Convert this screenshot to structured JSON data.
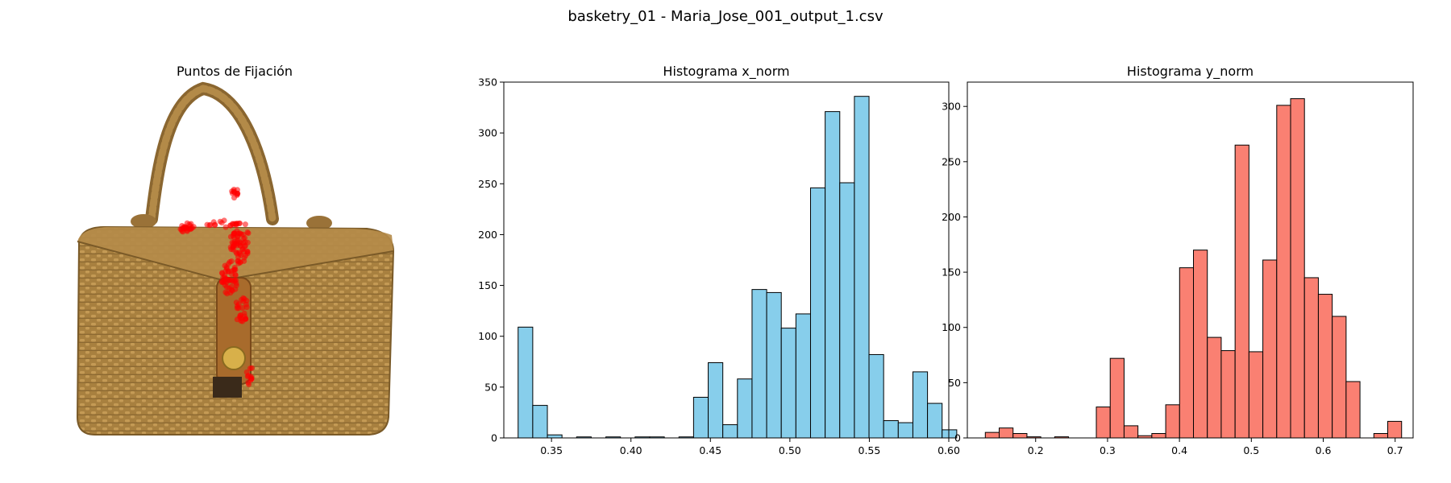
{
  "figure": {
    "suptitle": "basketry_01 - Maria_Jose_001_output_1.csv"
  },
  "image_panel": {
    "title": "Puntos de Fijación",
    "image_subject": "wicker-basket-handbag",
    "point_color": "#ff0000"
  },
  "chart_data": [
    {
      "type": "bar",
      "title": "Histograma x_norm",
      "xlabel": "",
      "ylabel": "",
      "xlim": [
        0.32,
        0.6
      ],
      "ylim": [
        0,
        350
      ],
      "xticks": [
        0.35,
        0.4,
        0.45,
        0.5,
        0.55,
        0.6
      ],
      "xtick_labels": [
        "0.35",
        "0.40",
        "0.45",
        "0.50",
        "0.55",
        "0.60"
      ],
      "yticks": [
        0,
        50,
        100,
        150,
        200,
        250,
        300,
        350
      ],
      "bar_color": "#87ceeb",
      "edge_color": "#000000",
      "bins": [
        {
          "x0": 0.329,
          "x1": 0.3382,
          "value": 109
        },
        {
          "x0": 0.3382,
          "x1": 0.3474,
          "value": 32
        },
        {
          "x0": 0.3474,
          "x1": 0.3566,
          "value": 3
        },
        {
          "x0": 0.3566,
          "x1": 0.3658,
          "value": 0
        },
        {
          "x0": 0.3658,
          "x1": 0.375,
          "value": 1
        },
        {
          "x0": 0.375,
          "x1": 0.3842,
          "value": 0
        },
        {
          "x0": 0.3842,
          "x1": 0.3934,
          "value": 1
        },
        {
          "x0": 0.3934,
          "x1": 0.4026,
          "value": 0
        },
        {
          "x0": 0.4026,
          "x1": 0.4118,
          "value": 1
        },
        {
          "x0": 0.4118,
          "x1": 0.421,
          "value": 1
        },
        {
          "x0": 0.421,
          "x1": 0.4302,
          "value": 0
        },
        {
          "x0": 0.4302,
          "x1": 0.4394,
          "value": 1
        },
        {
          "x0": 0.4394,
          "x1": 0.4486,
          "value": 40
        },
        {
          "x0": 0.4486,
          "x1": 0.4578,
          "value": 74
        },
        {
          "x0": 0.4578,
          "x1": 0.467,
          "value": 13
        },
        {
          "x0": 0.467,
          "x1": 0.4762,
          "value": 58
        },
        {
          "x0": 0.4762,
          "x1": 0.4854,
          "value": 146
        },
        {
          "x0": 0.4854,
          "x1": 0.4946,
          "value": 143
        },
        {
          "x0": 0.4946,
          "x1": 0.5038,
          "value": 108
        },
        {
          "x0": 0.5038,
          "x1": 0.513,
          "value": 122
        },
        {
          "x0": 0.513,
          "x1": 0.5222,
          "value": 246
        },
        {
          "x0": 0.5222,
          "x1": 0.5314,
          "value": 321
        },
        {
          "x0": 0.5314,
          "x1": 0.5406,
          "value": 251
        },
        {
          "x0": 0.5406,
          "x1": 0.5498,
          "value": 336
        },
        {
          "x0": 0.5498,
          "x1": 0.559,
          "value": 82
        },
        {
          "x0": 0.559,
          "x1": 0.5682,
          "value": 17
        },
        {
          "x0": 0.5682,
          "x1": 0.5774,
          "value": 15
        },
        {
          "x0": 0.5774,
          "x1": 0.5866,
          "value": 65
        },
        {
          "x0": 0.5866,
          "x1": 0.5958,
          "value": 34
        },
        {
          "x0": 0.5958,
          "x1": 0.605,
          "value": 8
        }
      ]
    },
    {
      "type": "bar",
      "title": "Histograma y_norm",
      "xlabel": "",
      "ylabel": "",
      "xlim": [
        0.105,
        0.725
      ],
      "ylim": [
        0,
        322
      ],
      "xticks": [
        0.2,
        0.3,
        0.4,
        0.5,
        0.6,
        0.7
      ],
      "xtick_labels": [
        "0.2",
        "0.3",
        "0.4",
        "0.5",
        "0.6",
        "0.7"
      ],
      "yticks": [
        0,
        50,
        100,
        150,
        200,
        250,
        300
      ],
      "bar_color": "#fa8072",
      "edge_color": "#000000",
      "bins": [
        {
          "x0": 0.13,
          "x1": 0.1493,
          "value": 5
        },
        {
          "x0": 0.1493,
          "x1": 0.1686,
          "value": 9
        },
        {
          "x0": 0.1686,
          "x1": 0.1879,
          "value": 4
        },
        {
          "x0": 0.1879,
          "x1": 0.2072,
          "value": 1
        },
        {
          "x0": 0.2072,
          "x1": 0.2265,
          "value": 0
        },
        {
          "x0": 0.2265,
          "x1": 0.2458,
          "value": 1
        },
        {
          "x0": 0.2458,
          "x1": 0.2651,
          "value": 0
        },
        {
          "x0": 0.2651,
          "x1": 0.2844,
          "value": 0
        },
        {
          "x0": 0.2844,
          "x1": 0.3037,
          "value": 28
        },
        {
          "x0": 0.3037,
          "x1": 0.323,
          "value": 72
        },
        {
          "x0": 0.323,
          "x1": 0.3423,
          "value": 11
        },
        {
          "x0": 0.3423,
          "x1": 0.3616,
          "value": 2
        },
        {
          "x0": 0.3616,
          "x1": 0.3809,
          "value": 4
        },
        {
          "x0": 0.3809,
          "x1": 0.4002,
          "value": 30
        },
        {
          "x0": 0.4002,
          "x1": 0.4195,
          "value": 154
        },
        {
          "x0": 0.4195,
          "x1": 0.4388,
          "value": 170
        },
        {
          "x0": 0.4388,
          "x1": 0.4581,
          "value": 91
        },
        {
          "x0": 0.4581,
          "x1": 0.4774,
          "value": 79
        },
        {
          "x0": 0.4774,
          "x1": 0.4967,
          "value": 265
        },
        {
          "x0": 0.4967,
          "x1": 0.516,
          "value": 78
        },
        {
          "x0": 0.516,
          "x1": 0.5353,
          "value": 161
        },
        {
          "x0": 0.5353,
          "x1": 0.5546,
          "value": 301
        },
        {
          "x0": 0.5546,
          "x1": 0.5739,
          "value": 307
        },
        {
          "x0": 0.5739,
          "x1": 0.5932,
          "value": 145
        },
        {
          "x0": 0.5932,
          "x1": 0.6125,
          "value": 130
        },
        {
          "x0": 0.6125,
          "x1": 0.6318,
          "value": 110
        },
        {
          "x0": 0.6318,
          "x1": 0.6511,
          "value": 51
        },
        {
          "x0": 0.6511,
          "x1": 0.6704,
          "value": 0
        },
        {
          "x0": 0.6704,
          "x1": 0.6897,
          "value": 4
        },
        {
          "x0": 0.6897,
          "x1": 0.709,
          "value": 15
        }
      ]
    }
  ]
}
